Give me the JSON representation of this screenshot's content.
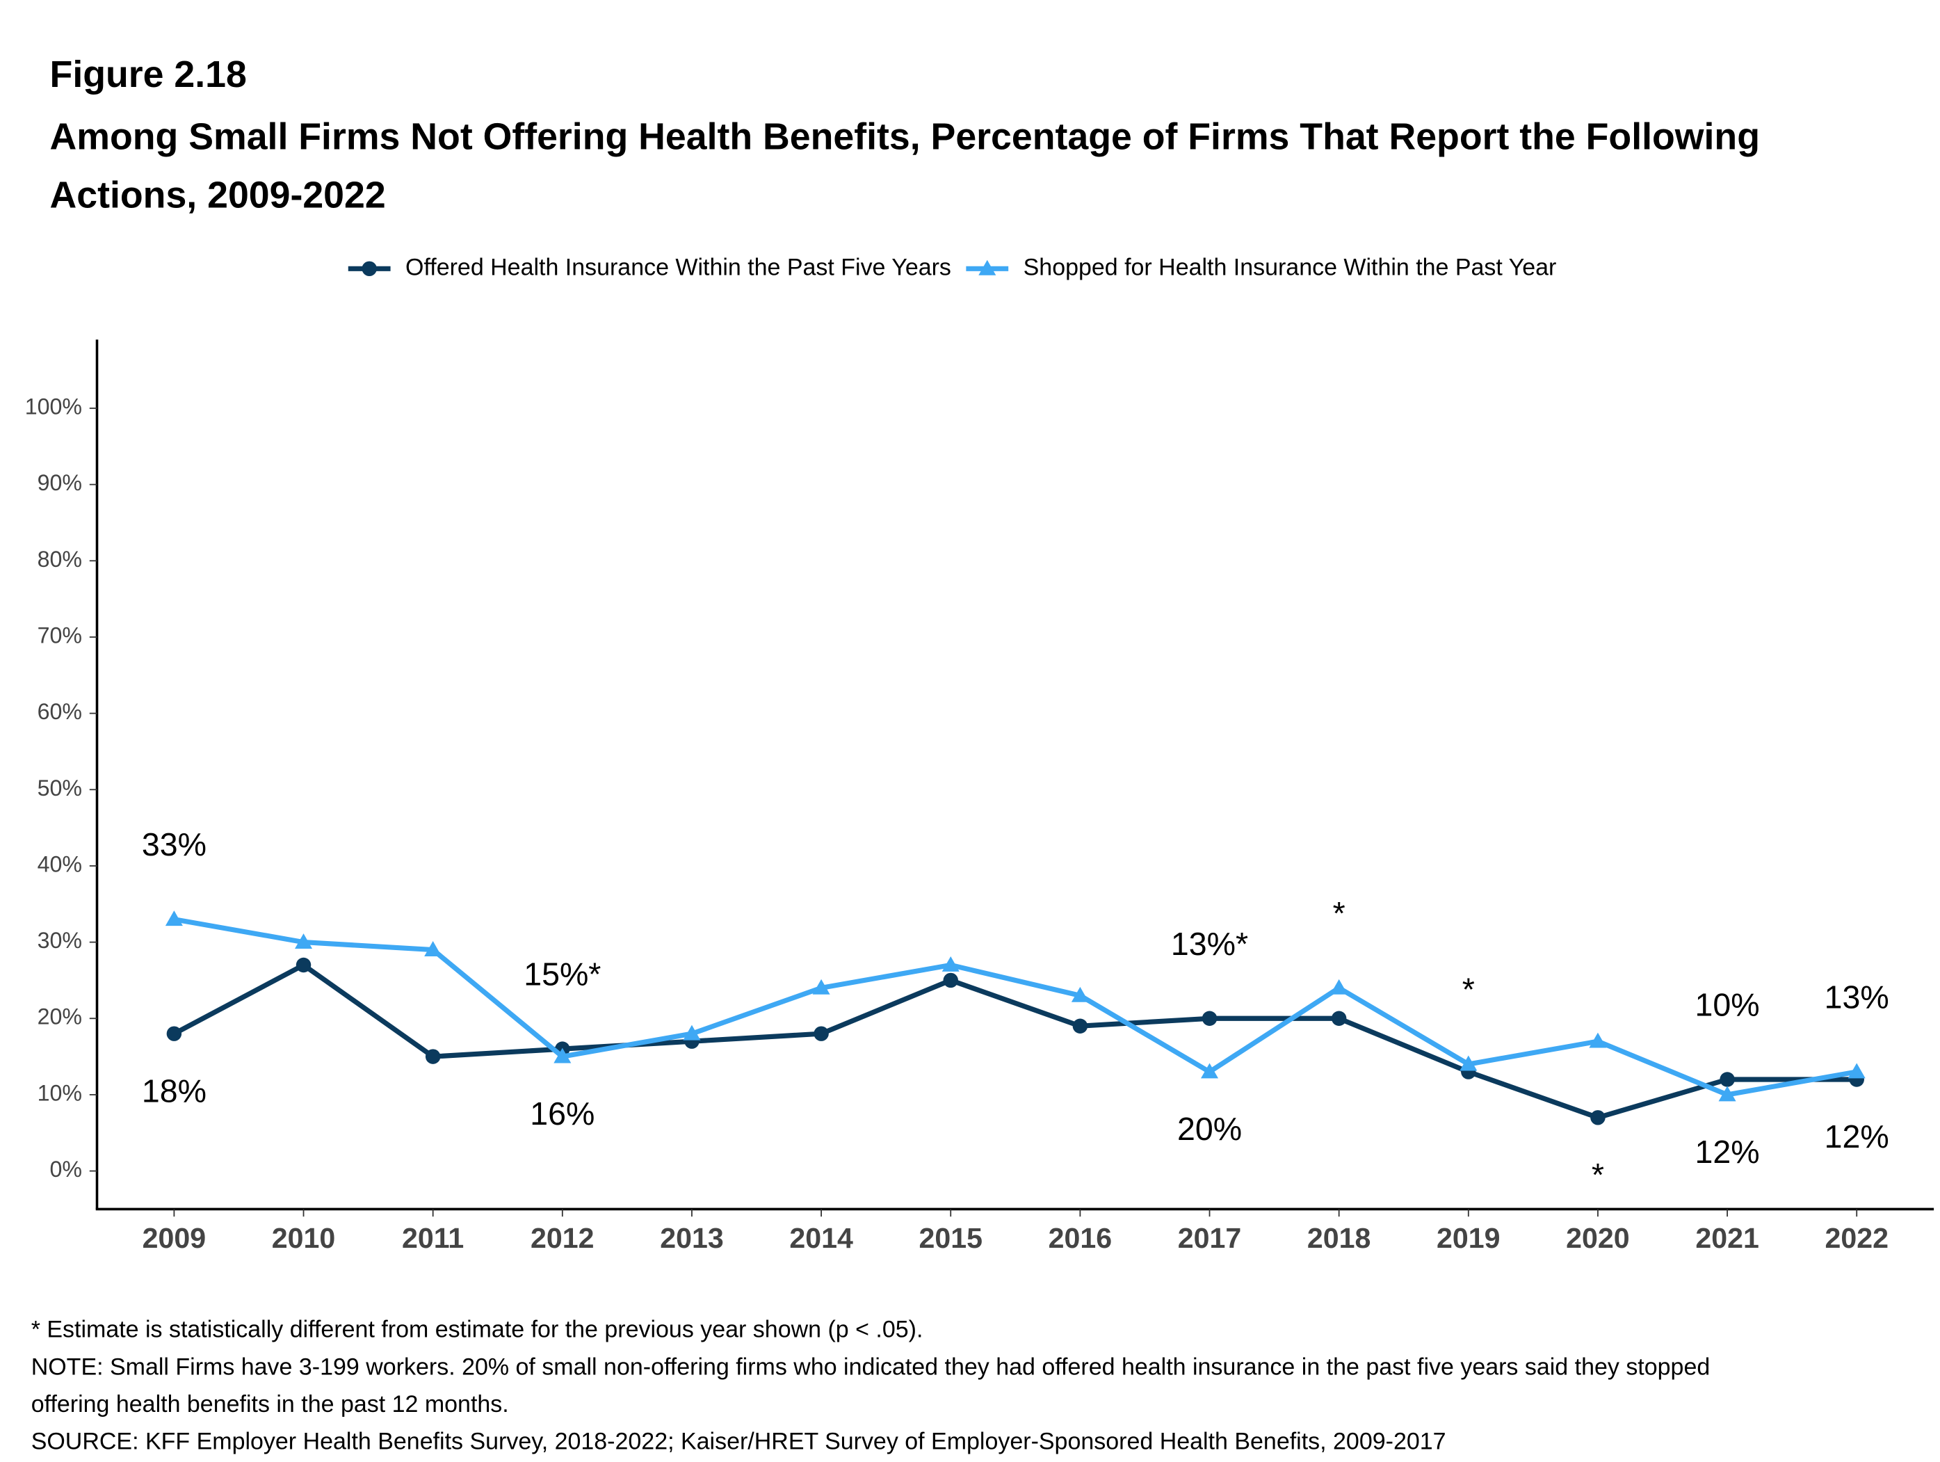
{
  "chart_data": {
    "type": "line",
    "figure_label": "Figure 2.18",
    "title": "Among Small Firms Not Offering Health Benefits, Percentage of Firms That Report the Following Actions, 2009-2022",
    "categories": [
      "2009",
      "2010",
      "2011",
      "2012",
      "2013",
      "2014",
      "2015",
      "2016",
      "2017",
      "2018",
      "2019",
      "2020",
      "2021",
      "2022"
    ],
    "series": [
      {
        "name": "Offered Health Insurance Within the Past Five Years",
        "color": "#0b3a5d",
        "marker": "circle",
        "values": [
          18,
          27,
          15,
          16,
          17,
          18,
          25,
          19,
          20,
          20,
          13,
          7,
          12,
          12
        ],
        "value_labels": [
          "18%",
          null,
          null,
          "16%",
          null,
          null,
          null,
          null,
          "20%",
          null,
          null,
          "*",
          "12%",
          "12%"
        ],
        "label_position": "below"
      },
      {
        "name": "Shopped for Health Insurance Within the Past Year",
        "color": "#3ea8f4",
        "marker": "triangle",
        "values": [
          33,
          30,
          29,
          15,
          18,
          24,
          27,
          23,
          13,
          24,
          14,
          17,
          10,
          13
        ],
        "value_labels": [
          "33%",
          null,
          null,
          "15%*",
          null,
          null,
          null,
          null,
          "13%*",
          "*",
          "*",
          null,
          "10%",
          "13%"
        ],
        "label_position": "above"
      }
    ],
    "ylim": [
      -5,
      109
    ],
    "yticks": [
      {
        "value": 0,
        "label": "0%"
      },
      {
        "value": 10,
        "label": "10%"
      },
      {
        "value": 20,
        "label": "20%"
      },
      {
        "value": 30,
        "label": "30%"
      },
      {
        "value": 40,
        "label": "40%"
      },
      {
        "value": 50,
        "label": "50%"
      },
      {
        "value": 60,
        "label": "60%"
      },
      {
        "value": 70,
        "label": "70%"
      },
      {
        "value": 80,
        "label": "80%"
      },
      {
        "value": 90,
        "label": "90%"
      },
      {
        "value": 100,
        "label": "100%"
      }
    ],
    "grid": false,
    "legend": "top",
    "notes": [
      "* Estimate is statistically different from estimate for the previous year shown (p < .05).",
      "NOTE: Small Firms have 3-199 workers. 20% of small non-offering firms who indicated they had offered health insurance in the past five years said they stopped offering health benefits in the past 12 months.",
      "SOURCE: KFF Employer Health Benefits Survey, 2018-2022; Kaiser/HRET Survey of Employer-Sponsored Health Benefits, 2009-2017"
    ]
  }
}
